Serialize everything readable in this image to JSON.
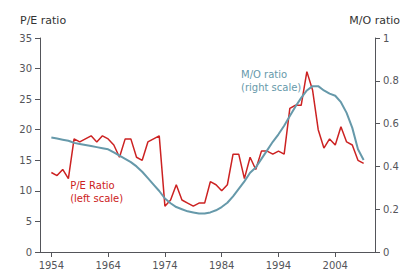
{
  "chart_data": {
    "type": "line",
    "ylabel": "P/E ratio",
    "y2label": "M/O ratio",
    "xlim": [
      1952,
      2011
    ],
    "xticks": [
      1954,
      1964,
      1974,
      1984,
      1994,
      2004
    ],
    "ylim": [
      0,
      35
    ],
    "yticks": [
      0,
      5,
      10,
      15,
      20,
      25,
      30,
      35
    ],
    "y2lim": [
      0,
      1
    ],
    "y2ticks": [
      0,
      0.2,
      0.4,
      0.6,
      0.8,
      1
    ],
    "grid": false,
    "x": [
      1954,
      1955,
      1956,
      1957,
      1958,
      1959,
      1960,
      1961,
      1962,
      1963,
      1964,
      1965,
      1966,
      1967,
      1968,
      1969,
      1970,
      1971,
      1972,
      1973,
      1974,
      1975,
      1976,
      1977,
      1978,
      1979,
      1980,
      1981,
      1982,
      1983,
      1984,
      1985,
      1986,
      1987,
      1988,
      1989,
      1990,
      1991,
      1992,
      1993,
      1994,
      1995,
      1996,
      1997,
      1998,
      1999,
      2000,
      2001,
      2002,
      2003,
      2004,
      2005,
      2006,
      2007,
      2008,
      2009
    ],
    "series": [
      {
        "color": "#cc2222",
        "values": [
          13.0,
          12.5,
          13.5,
          12.0,
          18.5,
          18.0,
          18.5,
          19.0,
          18.0,
          19.0,
          18.5,
          17.5,
          15.5,
          18.5,
          18.5,
          15.5,
          15.0,
          18.0,
          18.5,
          19.0,
          7.5,
          8.5,
          11.0,
          8.5,
          8.0,
          7.5,
          8.0,
          8.0,
          11.5,
          11.0,
          10.0,
          11.0,
          16.0,
          16.0,
          12.0,
          15.5,
          13.5,
          16.5,
          16.5,
          16.0,
          16.5,
          16.0,
          23.5,
          24.0,
          24.0,
          29.5,
          26.5,
          20.0,
          17.0,
          18.5,
          17.5,
          20.5,
          18.0,
          17.5,
          15.0,
          14.5
        ]
      },
      {
        "color": "#6699aa",
        "axis": "y2",
        "values": [
          0.535,
          0.53,
          0.525,
          0.52,
          0.51,
          0.505,
          0.5,
          0.495,
          0.49,
          0.485,
          0.48,
          0.465,
          0.45,
          0.435,
          0.42,
          0.4,
          0.375,
          0.345,
          0.315,
          0.285,
          0.25,
          0.228,
          0.21,
          0.2,
          0.19,
          0.185,
          0.18,
          0.18,
          0.185,
          0.195,
          0.21,
          0.23,
          0.26,
          0.295,
          0.33,
          0.37,
          0.395,
          0.435,
          0.475,
          0.515,
          0.55,
          0.59,
          0.635,
          0.68,
          0.72,
          0.755,
          0.775,
          0.775,
          0.755,
          0.74,
          0.73,
          0.7,
          0.65,
          0.58,
          0.48,
          0.43
        ]
      }
    ],
    "annotations": [
      {
        "text": "P/E Ratio\n(left scale)",
        "color": "#cc2222"
      },
      {
        "text": "M/O ratio\n(right scale)",
        "color": "#6699aa"
      }
    ]
  }
}
